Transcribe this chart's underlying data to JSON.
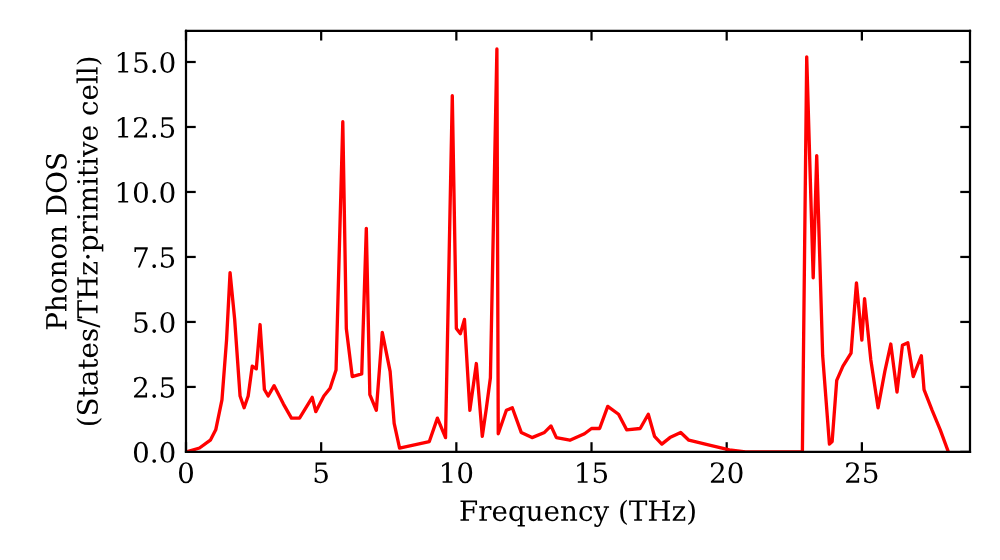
{
  "chart_data": {
    "type": "line",
    "xlabel": "Frequency (THz)",
    "ylabel": "Phonon DOS\n(States/THz·primitive cell)",
    "xlim": [
      0,
      29
    ],
    "ylim": [
      0,
      16.2
    ],
    "xticks": [
      0,
      5,
      10,
      15,
      20,
      25
    ],
    "yticks": [
      {
        "value": 0,
        "label": "0.0"
      },
      {
        "value": 2.5,
        "label": "2.5"
      },
      {
        "value": 5,
        "label": "5.0"
      },
      {
        "value": 7.5,
        "label": "7.5"
      },
      {
        "value": 10,
        "label": "10.0"
      },
      {
        "value": 12.5,
        "label": "12.5"
      },
      {
        "value": 15,
        "label": "15.0"
      }
    ],
    "grid": false,
    "marker": "none",
    "line_style": "solid",
    "series": [
      {
        "color": "#ff0000",
        "x": [
          0,
          0.5,
          0.9,
          1.1,
          1.33,
          1.5,
          1.63,
          1.8,
          2.0,
          2.15,
          2.3,
          2.45,
          2.6,
          2.74,
          2.9,
          3.04,
          3.26,
          3.6,
          3.9,
          4.2,
          4.67,
          4.8,
          5.1,
          5.33,
          5.55,
          5.8,
          5.93,
          6.15,
          6.5,
          6.67,
          6.8,
          7.04,
          7.26,
          7.55,
          7.7,
          7.9,
          9.0,
          9.3,
          9.6,
          9.85,
          10.0,
          10.15,
          10.3,
          10.5,
          10.74,
          10.96,
          11.1,
          11.26,
          11.5,
          11.55,
          11.85,
          12.07,
          12.4,
          12.8,
          13.26,
          13.5,
          13.7,
          14.2,
          14.74,
          15.0,
          15.3,
          15.6,
          16.0,
          16.3,
          16.8,
          17.1,
          17.33,
          17.6,
          17.9,
          18.3,
          18.6,
          19.4,
          20.1,
          20.7,
          22.8,
          22.96,
          23.2,
          23.33,
          23.55,
          23.8,
          23.9,
          24.07,
          24.3,
          24.6,
          24.8,
          25.0,
          25.1,
          25.33,
          25.6,
          25.85,
          26.07,
          26.3,
          26.5,
          26.7,
          26.9,
          27.2,
          27.3,
          27.6,
          27.9,
          28.2
        ],
        "values": [
          0,
          0.15,
          0.45,
          0.85,
          2.0,
          4.3,
          6.9,
          5.1,
          2.15,
          1.7,
          2.15,
          3.3,
          3.2,
          4.9,
          2.4,
          2.15,
          2.55,
          1.85,
          1.3,
          1.3,
          2.1,
          1.55,
          2.15,
          2.45,
          3.15,
          12.7,
          4.75,
          2.9,
          3.0,
          8.6,
          2.2,
          1.6,
          4.6,
          3.1,
          1.1,
          0.15,
          0.4,
          1.3,
          0.55,
          13.7,
          4.75,
          4.55,
          5.1,
          1.6,
          3.4,
          0.6,
          1.6,
          2.85,
          15.5,
          0.7,
          1.6,
          1.7,
          0.75,
          0.55,
          0.75,
          1.0,
          0.55,
          0.45,
          0.7,
          0.9,
          0.9,
          1.75,
          1.45,
          0.85,
          0.9,
          1.45,
          0.6,
          0.3,
          0.55,
          0.75,
          0.45,
          0.25,
          0.08,
          0,
          0,
          15.2,
          6.7,
          11.4,
          3.7,
          0.3,
          0.4,
          2.75,
          3.3,
          3.8,
          6.5,
          4.3,
          5.9,
          3.55,
          1.7,
          3.1,
          4.15,
          2.3,
          4.1,
          4.2,
          2.9,
          3.7,
          2.4,
          1.6,
          0.85,
          0
        ]
      }
    ]
  }
}
